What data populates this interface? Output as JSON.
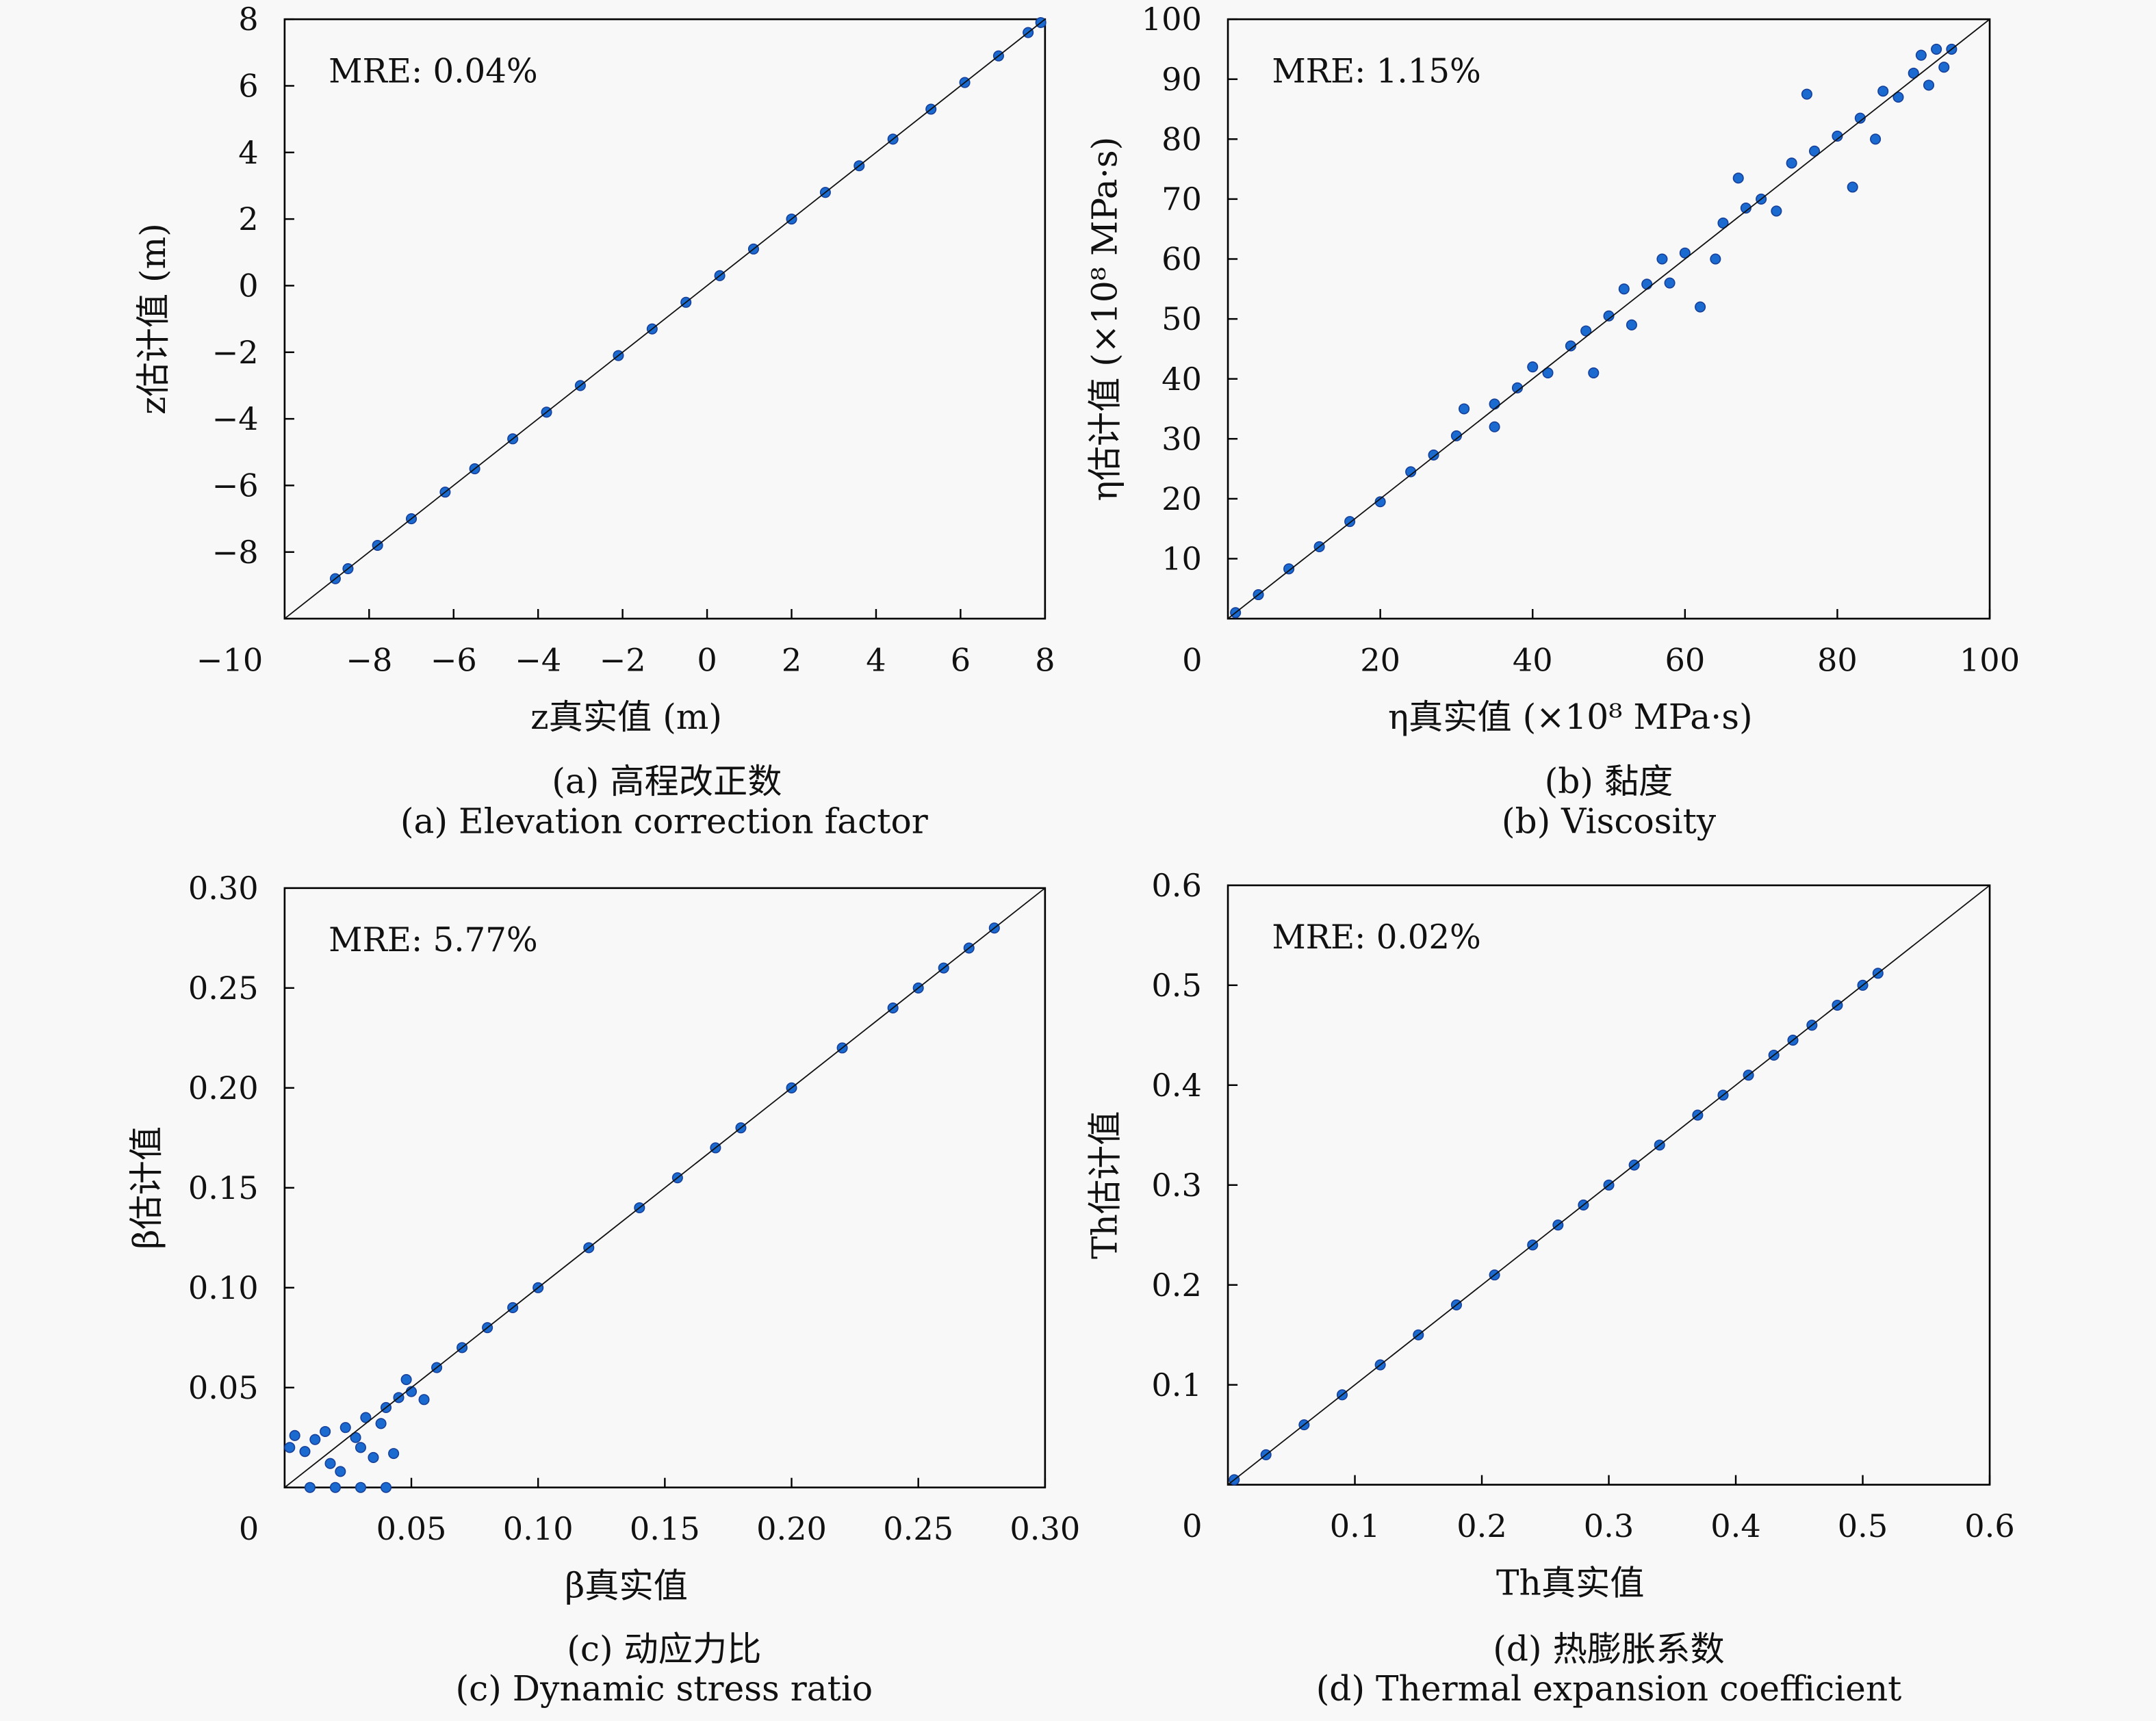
{
  "chart_data": [
    {
      "id": "a",
      "type": "scatter",
      "annotation": "MRE: 0.04%",
      "xlabel": "z真实值 (m)",
      "ylabel": "z估计值 (m)",
      "caption_cn": "(a) 高程改正数",
      "caption_en": "(a) Elevation correction factor",
      "xlim": [
        -10,
        8
      ],
      "ylim": [
        -10,
        8
      ],
      "xticks": [
        -8,
        -6,
        -4,
        -2,
        0,
        2,
        4,
        6,
        8
      ],
      "xtick_labels": [
        "−8",
        "−6",
        "−4",
        "−2",
        "0",
        "2",
        "4",
        "6",
        "8"
      ],
      "yticks": [
        8,
        6,
        4,
        2,
        0,
        -2,
        -4,
        -6,
        -8
      ],
      "ytick_labels": [
        "8",
        "6",
        "4",
        "2",
        "0",
        "−2",
        "−4",
        "−6",
        "−8"
      ],
      "corner_label": "−10",
      "reference_line": "y=x",
      "grid": false,
      "points": [
        [
          -8.8,
          -8.8
        ],
        [
          -8.5,
          -8.5
        ],
        [
          -7.8,
          -7.8
        ],
        [
          -7,
          -7
        ],
        [
          -6.2,
          -6.2
        ],
        [
          -5.5,
          -5.5
        ],
        [
          -4.6,
          -4.6
        ],
        [
          -3.8,
          -3.8
        ],
        [
          -3,
          -3
        ],
        [
          -2.1,
          -2.1
        ],
        [
          -1.3,
          -1.3
        ],
        [
          -0.5,
          -0.5
        ],
        [
          0.3,
          0.3
        ],
        [
          1.1,
          1.1
        ],
        [
          2,
          2
        ],
        [
          2.8,
          2.8
        ],
        [
          3.6,
          3.6
        ],
        [
          4.4,
          4.4
        ],
        [
          5.3,
          5.3
        ],
        [
          6.1,
          6.1
        ],
        [
          6.9,
          6.9
        ],
        [
          7.6,
          7.6
        ],
        [
          7.9,
          7.9
        ]
      ]
    },
    {
      "id": "b",
      "type": "scatter",
      "annotation": "MRE: 1.15%",
      "xlabel": "η真实值 (×10⁸ MPa·s)",
      "ylabel": "η估计值 (×10⁸ MPa·s)",
      "caption_cn": "(b) 黏度",
      "caption_en": "(b) Viscosity",
      "xlim": [
        0,
        100
      ],
      "ylim": [
        0,
        100
      ],
      "xticks": [
        20,
        40,
        60,
        80,
        100
      ],
      "xtick_labels": [
        "20",
        "40",
        "60",
        "80",
        "100"
      ],
      "yticks": [
        10,
        20,
        30,
        40,
        50,
        60,
        70,
        80,
        90,
        100
      ],
      "ytick_labels": [
        "10",
        "20",
        "30",
        "40",
        "50",
        "60",
        "70",
        "80",
        "90",
        "100"
      ],
      "corner_label": "0",
      "reference_line": "y=x",
      "grid": false,
      "points": [
        [
          1,
          1
        ],
        [
          4,
          4
        ],
        [
          8,
          8.3
        ],
        [
          12,
          12
        ],
        [
          16,
          16.2
        ],
        [
          20,
          19.5
        ],
        [
          24,
          24.5
        ],
        [
          27,
          27.3
        ],
        [
          30,
          30.5
        ],
        [
          31,
          35
        ],
        [
          35,
          35.8
        ],
        [
          35,
          32
        ],
        [
          38,
          38.5
        ],
        [
          40,
          42
        ],
        [
          42,
          41
        ],
        [
          45,
          45.5
        ],
        [
          47,
          48
        ],
        [
          48,
          41
        ],
        [
          50,
          50.5
        ],
        [
          52,
          55
        ],
        [
          53,
          49
        ],
        [
          55,
          55.8
        ],
        [
          57,
          60
        ],
        [
          58,
          56
        ],
        [
          60,
          61
        ],
        [
          62,
          52
        ],
        [
          64,
          60
        ],
        [
          65,
          66
        ],
        [
          67,
          73.5
        ],
        [
          68,
          68.5
        ],
        [
          70,
          70
        ],
        [
          72,
          68
        ],
        [
          74,
          76
        ],
        [
          76,
          87.5
        ],
        [
          77,
          78
        ],
        [
          80,
          80.5
        ],
        [
          82,
          72
        ],
        [
          83,
          83.5
        ],
        [
          85,
          80
        ],
        [
          86,
          88
        ],
        [
          88,
          87
        ],
        [
          90,
          91
        ],
        [
          91,
          94
        ],
        [
          92,
          89
        ],
        [
          93,
          95
        ],
        [
          94,
          92
        ],
        [
          95,
          95
        ]
      ]
    },
    {
      "id": "c",
      "type": "scatter",
      "annotation": "MRE: 5.77%",
      "xlabel": "β真实值",
      "ylabel": "β估计值",
      "caption_cn": "(c) 动应力比",
      "caption_en": "(c) Dynamic stress ratio",
      "xlim": [
        0,
        0.3
      ],
      "ylim": [
        0,
        0.3
      ],
      "xticks": [
        0.05,
        0.1,
        0.15,
        0.2,
        0.25,
        0.3
      ],
      "xtick_labels": [
        "0.05",
        "0.10",
        "0.15",
        "0.20",
        "0.25",
        "0.30"
      ],
      "yticks": [
        0.05,
        0.1,
        0.15,
        0.2,
        0.25,
        0.3
      ],
      "ytick_labels": [
        "0.05",
        "0.10",
        "0.15",
        "0.20",
        "0.25",
        "0.30"
      ],
      "corner_label": "0",
      "reference_line": "y=x",
      "grid": false,
      "points": [
        [
          0.002,
          0.02
        ],
        [
          0.004,
          0.026
        ],
        [
          0.008,
          0.018
        ],
        [
          0.012,
          0.024
        ],
        [
          0.016,
          0.028
        ],
        [
          0.018,
          0.012
        ],
        [
          0.022,
          0.008
        ],
        [
          0.024,
          0.03
        ],
        [
          0.028,
          0.025
        ],
        [
          0.03,
          0.02
        ],
        [
          0.032,
          0.035
        ],
        [
          0.035,
          0.015
        ],
        [
          0.038,
          0.032
        ],
        [
          0.04,
          0.04
        ],
        [
          0.043,
          0.017
        ],
        [
          0.045,
          0.045
        ],
        [
          0.048,
          0.054
        ],
        [
          0.05,
          0.048
        ],
        [
          0.055,
          0.044
        ],
        [
          0.06,
          0.06
        ],
        [
          0.07,
          0.07
        ],
        [
          0.08,
          0.08
        ],
        [
          0.09,
          0.09
        ],
        [
          0.1,
          0.1
        ],
        [
          0.12,
          0.12
        ],
        [
          0.14,
          0.14
        ],
        [
          0.155,
          0.155
        ],
        [
          0.17,
          0.17
        ],
        [
          0.18,
          0.18
        ],
        [
          0.2,
          0.2
        ],
        [
          0.22,
          0.22
        ],
        [
          0.24,
          0.24
        ],
        [
          0.25,
          0.25
        ],
        [
          0.26,
          0.26
        ],
        [
          0.27,
          0.27
        ],
        [
          0.28,
          0.28
        ],
        [
          0.01,
          0
        ],
        [
          0.02,
          0
        ],
        [
          0.03,
          0
        ],
        [
          0.04,
          0
        ]
      ]
    },
    {
      "id": "d",
      "type": "scatter",
      "annotation": "MRE: 0.02%",
      "xlabel": "Th真实值",
      "ylabel": "Th估计值",
      "caption_cn": "(d) 热膨胀系数",
      "caption_en": "(d) Thermal expansion coefficient",
      "xlim": [
        0,
        0.6
      ],
      "ylim": [
        0,
        0.6
      ],
      "xticks": [
        0.1,
        0.2,
        0.3,
        0.4,
        0.5,
        0.6
      ],
      "xtick_labels": [
        "0.1",
        "0.2",
        "0.3",
        "0.4",
        "0.5",
        "0.6"
      ],
      "yticks": [
        0.1,
        0.2,
        0.3,
        0.4,
        0.5,
        0.6
      ],
      "ytick_labels": [
        "0.1",
        "0.2",
        "0.3",
        "0.4",
        "0.5",
        "0.6"
      ],
      "corner_label": "0",
      "reference_line": "y=x",
      "grid": false,
      "points": [
        [
          0.005,
          0.005
        ],
        [
          0.03,
          0.03
        ],
        [
          0.06,
          0.06
        ],
        [
          0.09,
          0.09
        ],
        [
          0.12,
          0.12
        ],
        [
          0.15,
          0.15
        ],
        [
          0.18,
          0.18
        ],
        [
          0.21,
          0.21
        ],
        [
          0.24,
          0.24
        ],
        [
          0.26,
          0.26
        ],
        [
          0.28,
          0.28
        ],
        [
          0.3,
          0.3
        ],
        [
          0.32,
          0.32
        ],
        [
          0.34,
          0.34
        ],
        [
          0.37,
          0.37
        ],
        [
          0.39,
          0.39
        ],
        [
          0.41,
          0.41
        ],
        [
          0.43,
          0.43
        ],
        [
          0.445,
          0.445
        ],
        [
          0.46,
          0.46
        ],
        [
          0.48,
          0.48
        ],
        [
          0.5,
          0.5
        ],
        [
          0.512,
          0.512
        ]
      ]
    }
  ],
  "colors": {
    "points": "#1a6ad0",
    "points_edge": "#16409a",
    "reference_line": "#111111",
    "background": "#f8f8f8"
  }
}
